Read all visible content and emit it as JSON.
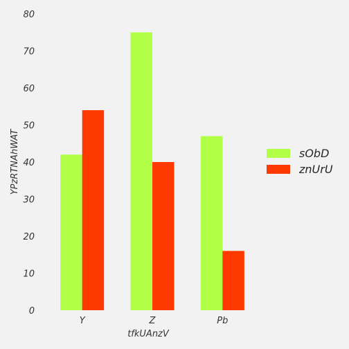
{
  "chart_data": {
    "type": "bar",
    "title": "",
    "xlabel": "tfkUAnzV",
    "ylabel": "YPzRTNAhWAT",
    "categories": [
      "Y",
      "Z",
      "Pb"
    ],
    "series": [
      {
        "name": "sObD",
        "color": "#b2ff48",
        "values": [
          42,
          75,
          47
        ]
      },
      {
        "name": "znUrU",
        "color": "#ff3a00",
        "values": [
          54,
          40,
          16
        ]
      }
    ],
    "ylim": [
      0,
      80
    ],
    "yticks": [
      0,
      10,
      20,
      30,
      40,
      50,
      60,
      70,
      80
    ],
    "grid": false,
    "legend_position": "right"
  }
}
